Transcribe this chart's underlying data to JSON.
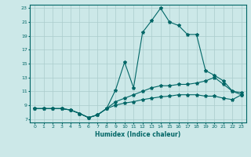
{
  "title": "",
  "xlabel": "Humidex (Indice chaleur)",
  "line_color": "#006666",
  "bg_color": "#cce8e8",
  "grid_color": "#aacccc",
  "xlim": [
    -0.5,
    23.5
  ],
  "ylim": [
    6.5,
    23.5
  ],
  "xticks": [
    0,
    1,
    2,
    3,
    4,
    5,
    6,
    7,
    8,
    9,
    10,
    11,
    12,
    13,
    14,
    15,
    16,
    17,
    18,
    19,
    20,
    21,
    22,
    23
  ],
  "yticks": [
    7,
    9,
    11,
    13,
    15,
    17,
    19,
    21,
    23
  ],
  "line1_x": [
    0,
    1,
    2,
    3,
    4,
    5,
    6,
    7,
    8,
    9,
    10,
    11,
    12,
    13,
    14,
    15,
    16,
    17,
    18,
    19,
    20,
    21,
    22,
    23
  ],
  "line1_y": [
    8.5,
    8.5,
    8.5,
    8.5,
    8.3,
    7.8,
    7.2,
    7.6,
    8.5,
    11.2,
    15.2,
    11.5,
    19.5,
    21.2,
    23.0,
    21.0,
    20.5,
    19.2,
    19.2,
    14.0,
    13.3,
    12.5,
    11.0,
    10.8
  ],
  "line2_x": [
    0,
    1,
    2,
    3,
    4,
    5,
    6,
    7,
    8,
    9,
    10,
    11,
    12,
    13,
    14,
    15,
    16,
    17,
    18,
    19,
    20,
    21,
    22,
    23
  ],
  "line2_y": [
    8.5,
    8.5,
    8.5,
    8.5,
    8.3,
    7.8,
    7.2,
    7.6,
    8.5,
    9.0,
    9.3,
    9.5,
    9.8,
    10.0,
    10.2,
    10.3,
    10.5,
    10.5,
    10.5,
    10.3,
    10.3,
    10.0,
    9.8,
    10.5
  ],
  "line3_x": [
    0,
    1,
    2,
    3,
    4,
    5,
    6,
    7,
    8,
    9,
    10,
    11,
    12,
    13,
    14,
    15,
    16,
    17,
    18,
    19,
    20,
    21,
    22,
    23
  ],
  "line3_y": [
    8.5,
    8.5,
    8.5,
    8.5,
    8.3,
    7.8,
    7.2,
    7.6,
    8.5,
    9.5,
    10.0,
    10.5,
    11.0,
    11.5,
    11.8,
    11.8,
    12.0,
    12.0,
    12.2,
    12.5,
    13.0,
    12.0,
    11.0,
    10.5
  ]
}
